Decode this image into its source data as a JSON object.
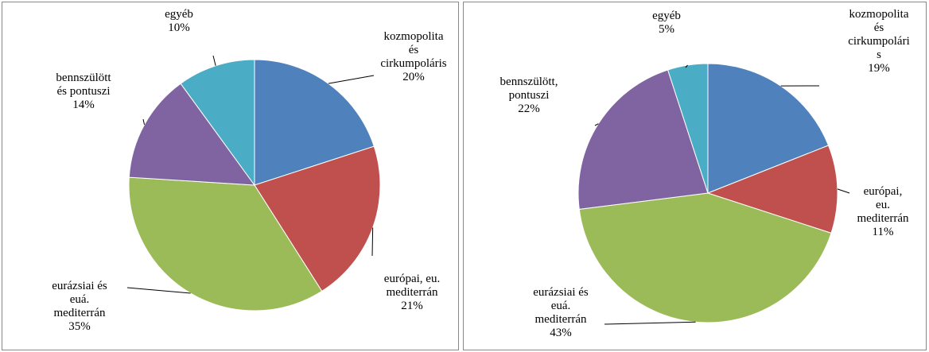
{
  "chart_data": [
    {
      "type": "pie",
      "categories": [
        "kozmopolita\nés\ncirkumpoláris",
        "európai, eu.\nmediterrán",
        "eurázsiai és\neuá.\nmediterrán",
        "bennszülött\nés pontuszi",
        "egyéb"
      ],
      "values": [
        20,
        21,
        35,
        14,
        10
      ],
      "value_labels": [
        "20%",
        "21%",
        "35%",
        "14%",
        "10%"
      ],
      "colors": [
        "#4f81bd",
        "#c0504d",
        "#9bbb59",
        "#8064a2",
        "#4bacc6"
      ]
    },
    {
      "type": "pie",
      "categories": [
        "kozmopolita\nés\ncirkumpolári\ns",
        "európai, eu.\nmediterrán",
        "eurázsiai és\neuá.\nmediterrán",
        "bennszülött,\npontuszi",
        "egyéb"
      ],
      "values": [
        19,
        11,
        43,
        22,
        5
      ],
      "value_labels": [
        "19%",
        "11%",
        "43%",
        "22%",
        "5%"
      ],
      "colors": [
        "#4f81bd",
        "#c0504d",
        "#9bbb59",
        "#8064a2",
        "#4bacc6"
      ]
    }
  ]
}
